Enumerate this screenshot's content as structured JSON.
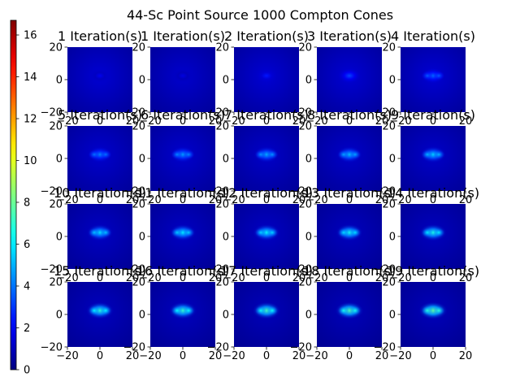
{
  "title": "44-Sc Point Source 1000 Compton Cones",
  "chart_data": {
    "type": "heatmap",
    "title": "44-Sc Point Source 1000 Compton Cones",
    "colormap": "jet",
    "colorbar": {
      "range": [
        0,
        16.7
      ],
      "ticks": [
        0,
        2,
        4,
        6,
        8,
        10,
        12,
        14,
        16
      ],
      "tick_labels": [
        "0",
        "2",
        "4",
        "6",
        "8",
        "10",
        "12",
        "14",
        "16"
      ]
    },
    "axes": {
      "xlim": [
        -20,
        20
      ],
      "ylim": [
        -20,
        20
      ],
      "x_ticks": [
        "−20",
        "0",
        "20"
      ],
      "y_ticks": [
        "−20",
        "0",
        "20"
      ]
    },
    "panels": [
      {
        "title": "1 Iteration(s)",
        "iteration": 1,
        "peak_value": 1.8,
        "background_value": 0.8
      },
      {
        "title": "1 Iteration(s)",
        "iteration": 1,
        "peak_value": 1.6,
        "background_value": 0.75
      },
      {
        "title": "2 Iteration(s)",
        "iteration": 2,
        "peak_value": 2.4,
        "background_value": 0.8
      },
      {
        "title": "3 Iteration(s)",
        "iteration": 3,
        "peak_value": 3.2,
        "background_value": 0.8
      },
      {
        "title": "4 Iteration(s)",
        "iteration": 4,
        "peak_value": 3.8,
        "background_value": 0.8
      },
      {
        "title": "5 Iteration(s)",
        "iteration": 5,
        "peak_value": 4.3,
        "background_value": 0.75
      },
      {
        "title": "6 Iteration(s)",
        "iteration": 6,
        "peak_value": 4.7,
        "background_value": 0.75
      },
      {
        "title": "7 Iteration(s)",
        "iteration": 7,
        "peak_value": 5.0,
        "background_value": 0.7
      },
      {
        "title": "8 Iteration(s)",
        "iteration": 8,
        "peak_value": 5.3,
        "background_value": 0.7
      },
      {
        "title": "9 Iteration(s)",
        "iteration": 9,
        "peak_value": 5.6,
        "background_value": 0.7
      },
      {
        "title": "10 Iteration(s)",
        "iteration": 10,
        "peak_value": 5.9,
        "background_value": 0.65
      },
      {
        "title": "11 Iteration(s)",
        "iteration": 11,
        "peak_value": 6.1,
        "background_value": 0.65
      },
      {
        "title": "12 Iteration(s)",
        "iteration": 12,
        "peak_value": 6.3,
        "background_value": 0.65
      },
      {
        "title": "13 Iteration(s)",
        "iteration": 13,
        "peak_value": 6.5,
        "background_value": 0.6
      },
      {
        "title": "14 Iteration(s)",
        "iteration": 14,
        "peak_value": 6.7,
        "background_value": 0.6
      },
      {
        "title": "15 Iteration(s)",
        "iteration": 15,
        "peak_value": 6.9,
        "background_value": 0.6
      },
      {
        "title": "16 Iteration(s)",
        "iteration": 16,
        "peak_value": 7.1,
        "background_value": 0.6
      },
      {
        "title": "17 Iteration(s)",
        "iteration": 17,
        "peak_value": 7.3,
        "background_value": 0.55
      },
      {
        "title": "18 Iteration(s)",
        "iteration": 18,
        "peak_value": 7.5,
        "background_value": 0.55
      },
      {
        "title": "19 Iteration(s)",
        "iteration": 19,
        "peak_value": 7.8,
        "background_value": 0.55
      }
    ]
  }
}
